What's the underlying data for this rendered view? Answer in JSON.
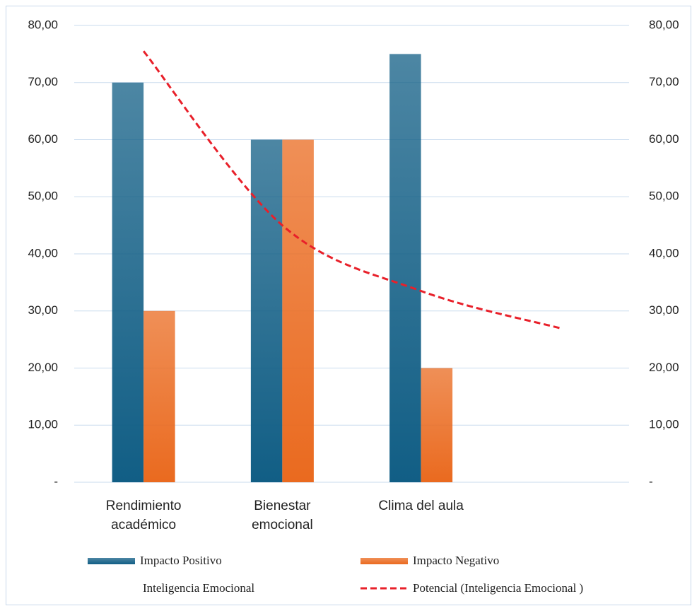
{
  "chart_data": {
    "type": "bar",
    "categories": [
      "Rendimiento académico",
      "Bienestar emocional",
      "Clima del aula",
      null
    ],
    "series": [
      {
        "name": "Impacto Positivo",
        "color": "#115e85",
        "values": [
          70,
          60,
          75,
          null
        ]
      },
      {
        "name": "Impacto Negativo",
        "color": "#ea6a1f",
        "values": [
          30,
          60,
          20,
          null
        ]
      },
      {
        "name": "Inteligencia Emocional",
        "type": "line",
        "values": [
          null,
          null,
          null,
          null
        ]
      },
      {
        "name": "Potencial (Inteligencia Emocional )",
        "type": "trendline",
        "color": "#e8202a",
        "dashed": true,
        "values": [
          75.5,
          45,
          33.5,
          27
        ]
      }
    ],
    "ylim": [
      0,
      80
    ],
    "yticks": [
      {
        "value": 0,
        "label": "-"
      },
      {
        "value": 10,
        "label": "10,00"
      },
      {
        "value": 20,
        "label": "20,00"
      },
      {
        "value": 30,
        "label": "30,00"
      },
      {
        "value": 40,
        "label": "40,00"
      },
      {
        "value": 50,
        "label": "50,00"
      },
      {
        "value": 60,
        "label": "60,00"
      },
      {
        "value": 70,
        "label": "70,00"
      },
      {
        "value": 80,
        "label": "80,00"
      }
    ],
    "y2lim": [
      0,
      80
    ],
    "y2ticks": [
      {
        "value": 0,
        "label": "-"
      },
      {
        "value": 10,
        "label": "10,00"
      },
      {
        "value": 20,
        "label": "20,00"
      },
      {
        "value": 30,
        "label": "30,00"
      },
      {
        "value": 40,
        "label": "40,00"
      },
      {
        "value": 50,
        "label": "50,00"
      },
      {
        "value": 60,
        "label": "60,00"
      },
      {
        "value": 70,
        "label": "70,00"
      },
      {
        "value": 80,
        "label": "80,00"
      }
    ],
    "grid": true
  }
}
